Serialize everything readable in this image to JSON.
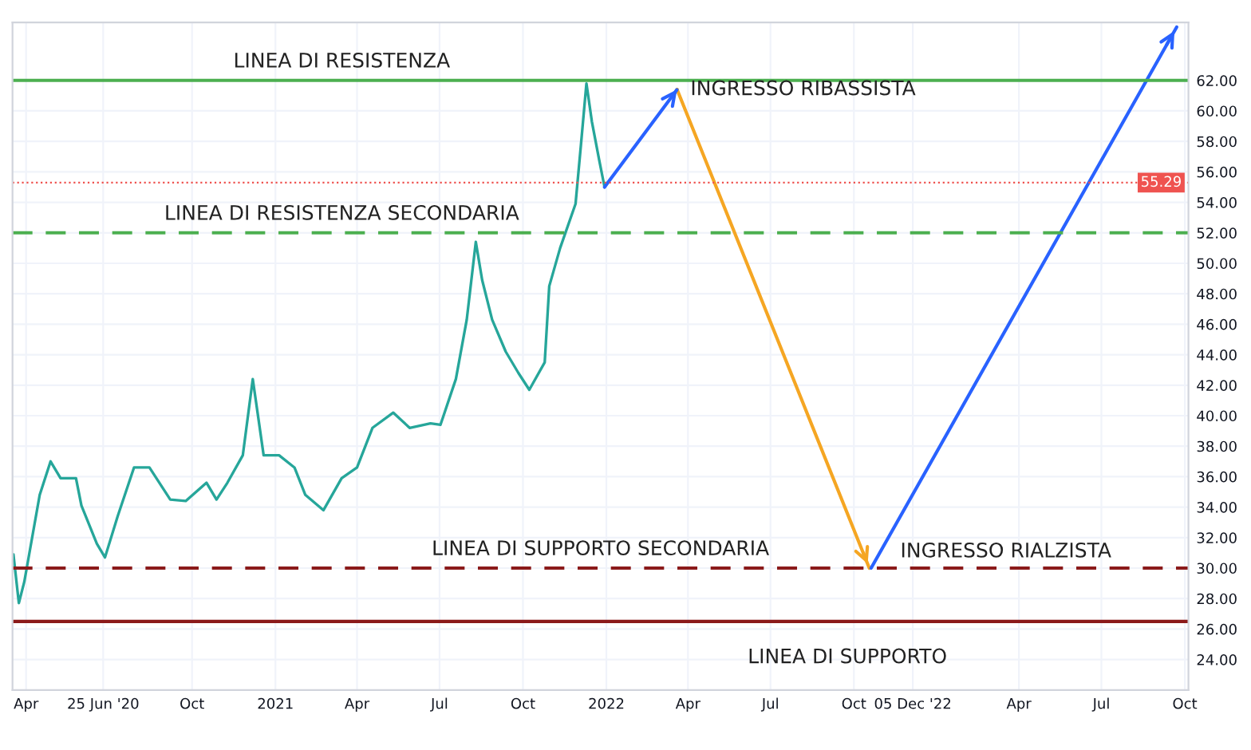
{
  "chart_data": {
    "type": "line",
    "x": [
      "2020-03-18",
      "2020-03-24",
      "2020-03-30",
      "2020-04-16",
      "2020-04-28",
      "2020-05-09",
      "2020-05-26",
      "2020-06-01",
      "2020-06-18",
      "2020-06-27",
      "2020-07-11",
      "2020-07-29",
      "2020-08-15",
      "2020-09-07",
      "2020-09-24",
      "2020-10-17",
      "2020-10-28",
      "2020-11-09",
      "2020-11-26",
      "2020-12-07",
      "2020-12-19",
      "2021-01-05",
      "2021-01-22",
      "2021-02-03",
      "2021-02-23",
      "2021-03-15",
      "2021-04-01",
      "2021-04-18",
      "2021-05-11",
      "2021-05-29",
      "2021-06-21",
      "2021-07-02",
      "2021-07-19",
      "2021-07-31",
      "2021-08-10",
      "2021-08-17",
      "2021-08-28",
      "2021-09-12",
      "2021-09-26",
      "2021-10-08",
      "2021-10-25",
      "2021-10-30",
      "2021-11-11",
      "2021-11-28",
      "2021-12-04",
      "2021-12-10",
      "2021-12-16",
      "2021-12-24",
      "2021-12-30"
    ],
    "series": [
      {
        "color": "#26a69a",
        "values": [
          30.9,
          27.7,
          29.1,
          34.8,
          37.0,
          35.9,
          35.9,
          34.1,
          31.6,
          30.7,
          33.4,
          36.6,
          36.6,
          34.5,
          34.4,
          35.6,
          34.5,
          35.6,
          37.4,
          42.4,
          37.4,
          37.4,
          36.6,
          34.8,
          33.8,
          35.9,
          36.6,
          39.2,
          40.2,
          39.2,
          39.5,
          39.4,
          42.4,
          46.3,
          51.4,
          48.9,
          46.3,
          44.2,
          42.8,
          41.7,
          43.5,
          48.5,
          51.0,
          53.9,
          57.8,
          61.8,
          59.3,
          56.8,
          55.0
        ]
      },
      {
        "type": "line",
        "color": "#2962ff",
        "x": [
          "2021-12-30",
          "2022-03-20"
        ],
        "values": [
          55.0,
          61.4
        ]
      },
      {
        "type": "line",
        "color": "#f5a623",
        "x": [
          "2022-03-20",
          "2022-10-18"
        ],
        "values": [
          61.4,
          30.0
        ]
      },
      {
        "type": "line",
        "color": "#2962ff",
        "x": [
          "2022-10-20",
          "2023-09-22"
        ],
        "values": [
          30.0,
          65.5
        ]
      }
    ],
    "xlim": [
      "2020-03-17",
      "2023-10-05"
    ],
    "ylim": [
      22,
      65.8
    ],
    "xticks": [
      {
        "value": "2020-04-01",
        "label": "Apr"
      },
      {
        "value": "2020-06-25",
        "label": "25 Jun '20"
      },
      {
        "value": "2020-10-01",
        "label": "Oct"
      },
      {
        "value": "2021-01-01",
        "label": "2021"
      },
      {
        "value": "2021-04-01",
        "label": "Apr"
      },
      {
        "value": "2021-07-01",
        "label": "Jul"
      },
      {
        "value": "2021-10-01",
        "label": "Oct"
      },
      {
        "value": "2022-01-01",
        "label": "2022"
      },
      {
        "value": "2022-04-01",
        "label": "Apr"
      },
      {
        "value": "2022-07-01",
        "label": "Jul"
      },
      {
        "value": "2022-10-01",
        "label": "Oct"
      },
      {
        "value": "2022-12-05",
        "label": "05 Dec '22"
      },
      {
        "value": "2023-04-01",
        "label": "Apr"
      },
      {
        "value": "2023-07-01",
        "label": "Jul"
      },
      {
        "value": "2023-10-01",
        "label": "Oct"
      }
    ],
    "yticks": [
      {
        "value": 24,
        "label": "24.00"
      },
      {
        "value": 26,
        "label": "26.00"
      },
      {
        "value": 28,
        "label": "28.00"
      },
      {
        "value": 30,
        "label": "30.00"
      },
      {
        "value": 32,
        "label": "32.00"
      },
      {
        "value": 34,
        "label": "34.00"
      },
      {
        "value": 36,
        "label": "36.00"
      },
      {
        "value": 38,
        "label": "38.00"
      },
      {
        "value": 40,
        "label": "40.00"
      },
      {
        "value": 42,
        "label": "42.00"
      },
      {
        "value": 44,
        "label": "44.00"
      },
      {
        "value": 46,
        "label": "46.00"
      },
      {
        "value": 48,
        "label": "48.00"
      },
      {
        "value": 50,
        "label": "50.00"
      },
      {
        "value": 52,
        "label": "52.00"
      },
      {
        "value": 54,
        "label": "54.00"
      },
      {
        "value": 56,
        "label": "56.00"
      },
      {
        "value": 58,
        "label": "58.00"
      },
      {
        "value": 60,
        "label": "60.00"
      },
      {
        "value": 62,
        "label": "62.00"
      }
    ],
    "ref_lines": [
      {
        "axis": "y",
        "value": 62,
        "label": "LINEA DI RESISTENZA",
        "color": "#4caf50",
        "line_style": "solid"
      },
      {
        "axis": "y",
        "value": 52,
        "label": "LINEA DI RESISTENZA SECONDARIA",
        "color": "#4caf50",
        "line_style": "dashed"
      },
      {
        "axis": "y",
        "value": 30,
        "label": "LINEA DI SUPPORTO SECONDARIA",
        "color": "#8b1a1a",
        "line_style": "dashed"
      },
      {
        "axis": "y",
        "value": 26.5,
        "label": "LINEA DI SUPPORTO",
        "color": "#8b1a1a",
        "line_style": "solid"
      },
      {
        "axis": "y",
        "value": 55.29,
        "label": "55.29",
        "color": "#ef5350",
        "line_style": "dotted"
      }
    ],
    "annotations": [
      {
        "text": "INGRESSO RIBASSISTA",
        "x": "2022-03-20",
        "y": 61.4
      },
      {
        "text": "INGRESSO RIALZISTA",
        "x": "2022-10-18",
        "y": 30.0
      }
    ],
    "grid": true,
    "line_style": "solid"
  }
}
